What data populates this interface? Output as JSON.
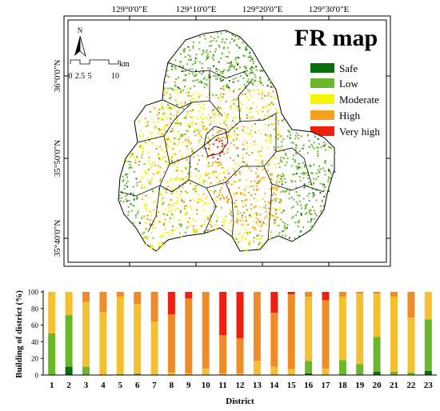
{
  "map": {
    "title": "FR map",
    "longitude_labels": [
      "129°0'0\"E",
      "129°10'0\"E",
      "129°20'0\"E",
      "129°30'0\"E"
    ],
    "latitude_labels": [
      "36°0'0\"N",
      "35°50'0\"N",
      "35°40'0\"N"
    ],
    "north_label": "N",
    "scale": {
      "unit": "km",
      "ticks": [
        "0",
        "2.5",
        "5",
        "10"
      ]
    },
    "legend": [
      {
        "label": "Safe",
        "color": "#0a6e0a"
      },
      {
        "label": "Low",
        "color": "#6ab82a"
      },
      {
        "label": "Moderate",
        "color": "#f5f500"
      },
      {
        "label": "High",
        "color": "#f5a01e"
      },
      {
        "label": "Very high",
        "color": "#f02010"
      }
    ]
  },
  "chart_data": {
    "type": "bar",
    "stacked": true,
    "xlabel": "District",
    "ylabel": "Building of district (%)",
    "ylim": [
      0,
      100
    ],
    "yticks": [
      0,
      20,
      40,
      60,
      80,
      100
    ],
    "categories": [
      "1",
      "2",
      "3",
      "4",
      "5",
      "6",
      "7",
      "8",
      "9",
      "10",
      "11",
      "12",
      "13",
      "14",
      "15",
      "16",
      "17",
      "18",
      "19",
      "20",
      "21",
      "22",
      "23"
    ],
    "series": [
      {
        "color": "#0a6e0a",
        "values": [
          0,
          10,
          0,
          0,
          0,
          0,
          0,
          0,
          0,
          0,
          0,
          0,
          0,
          0,
          0,
          2,
          0,
          0,
          0,
          4,
          0,
          0,
          5
        ]
      },
      {
        "color": "#6ab82a",
        "values": [
          50,
          62,
          10,
          0,
          1,
          2,
          0,
          0,
          0,
          0,
          0,
          0,
          0,
          0,
          0,
          15,
          0,
          18,
          13,
          42,
          4,
          3,
          62
        ]
      },
      {
        "color": "#f5c030",
        "values": [
          50,
          28,
          78,
          76,
          93,
          83,
          64,
          3,
          2,
          8,
          2,
          2,
          17,
          10,
          7,
          77,
          8,
          76,
          85,
          52,
          90,
          66,
          33
        ]
      },
      {
        "color": "#f08c28",
        "values": [
          0,
          0,
          12,
          24,
          6,
          15,
          36,
          70,
          90,
          92,
          46,
          42,
          83,
          65,
          90,
          6,
          82,
          6,
          2,
          2,
          6,
          31,
          0
        ]
      },
      {
        "color": "#f02010",
        "values": [
          0,
          0,
          0,
          0,
          0,
          0,
          0,
          27,
          8,
          0,
          52,
          56,
          0,
          25,
          3,
          0,
          10,
          0,
          0,
          0,
          0,
          0,
          0
        ]
      }
    ]
  }
}
